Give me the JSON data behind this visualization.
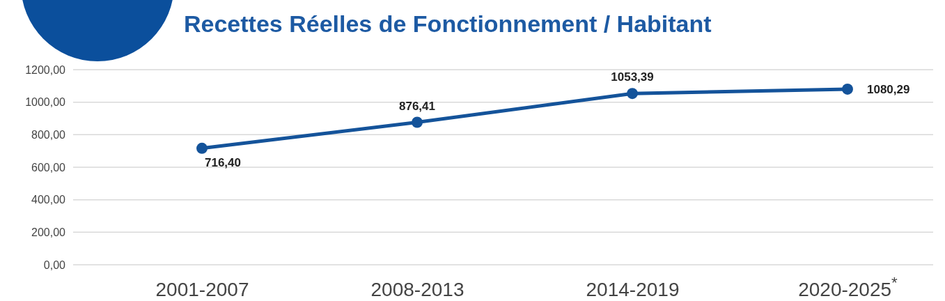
{
  "chart_data": {
    "type": "line",
    "title": "Recettes Réelles de Fonctionnement / Habitant",
    "categories": [
      "2001-2007",
      "2008-2013",
      "2014-2019",
      "2020-2025$^{*}$"
    ],
    "series": [
      {
        "color": "#14539a",
        "values": [
          716.4,
          876.41,
          1053.39,
          1080.29
        ]
      }
    ],
    "ylim": [
      0,
      1200
    ],
    "yticks": [
      {
        "value": 0,
        "label": "0,00"
      },
      {
        "value": 200,
        "label": "200,00"
      },
      {
        "value": 400,
        "label": "400,00"
      },
      {
        "value": 600,
        "label": "600,00"
      },
      {
        "value": 800,
        "label": "800,00"
      },
      {
        "value": 1000,
        "label": "1000,00"
      },
      {
        "value": 1200,
        "label": "1200,00"
      }
    ],
    "grid": "y",
    "marker": "circle",
    "line_style": "solid",
    "value_labels": [
      "716,40",
      "876,41",
      "1053,39",
      "1080,29"
    ]
  }
}
